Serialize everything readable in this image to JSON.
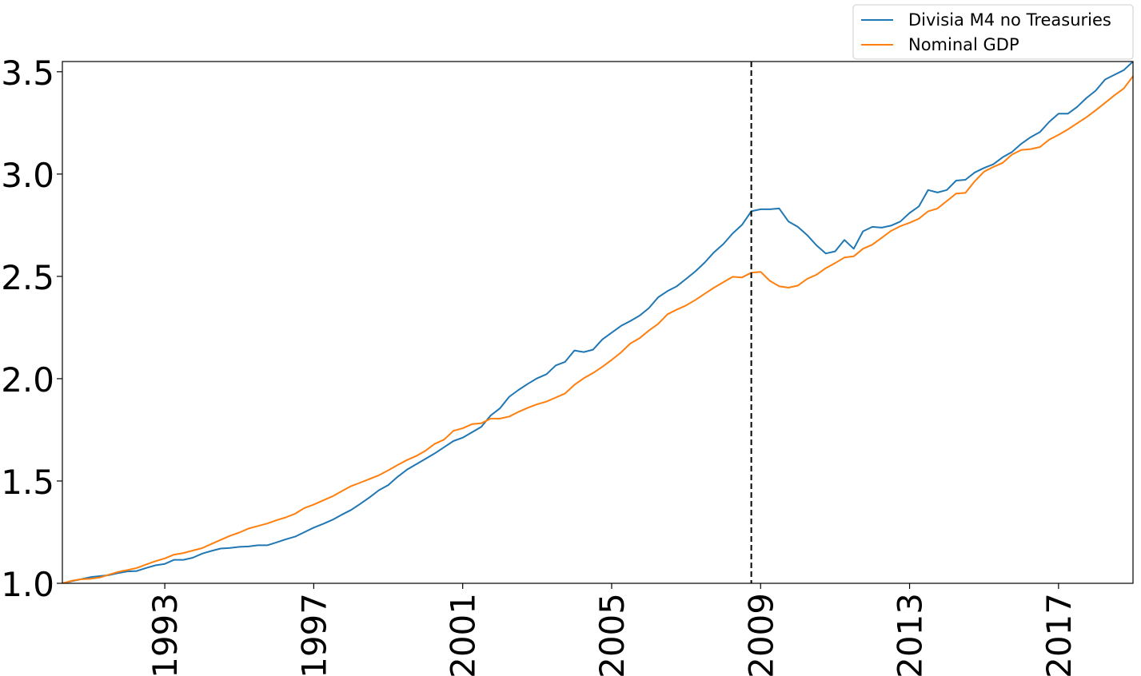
{
  "chart_data": {
    "type": "line",
    "title": "",
    "xlabel": "",
    "ylabel": "",
    "xlim": [
      1990.25,
      2019.0
    ],
    "ylim": [
      1.0,
      3.55
    ],
    "x_ticks": [
      "1993",
      "1997",
      "2001",
      "2005",
      "2009",
      "2013",
      "2017"
    ],
    "y_ticks": [
      "1.0",
      "1.5",
      "2.0",
      "2.5",
      "3.0",
      "3.5"
    ],
    "vertical_marker": 2008.75,
    "legend_position": "upper-right, above plot",
    "grid": false,
    "series": [
      {
        "name": "Divisia M4 no Treasuries",
        "color": "#1f77b4",
        "points": [
          [
            1990.25,
            1.0
          ],
          [
            1990.5,
            1.01
          ],
          [
            1990.75,
            1.02
          ],
          [
            1991.0,
            1.03
          ],
          [
            1991.25,
            1.035
          ],
          [
            1991.5,
            1.04
          ],
          [
            1991.75,
            1.05
          ],
          [
            1992.0,
            1.058
          ],
          [
            1992.25,
            1.06
          ],
          [
            1992.5,
            1.075
          ],
          [
            1992.75,
            1.088
          ],
          [
            1993.0,
            1.095
          ],
          [
            1993.25,
            1.115
          ],
          [
            1993.5,
            1.115
          ],
          [
            1993.75,
            1.125
          ],
          [
            1994.0,
            1.145
          ],
          [
            1994.25,
            1.158
          ],
          [
            1994.5,
            1.17
          ],
          [
            1994.75,
            1.173
          ],
          [
            1995.0,
            1.178
          ],
          [
            1995.25,
            1.18
          ],
          [
            1995.5,
            1.186
          ],
          [
            1995.75,
            1.186
          ],
          [
            1996.0,
            1.2
          ],
          [
            1996.25,
            1.215
          ],
          [
            1996.5,
            1.228
          ],
          [
            1996.75,
            1.25
          ],
          [
            1997.0,
            1.272
          ],
          [
            1997.25,
            1.29
          ],
          [
            1997.5,
            1.31
          ],
          [
            1997.75,
            1.335
          ],
          [
            1998.0,
            1.358
          ],
          [
            1998.25,
            1.388
          ],
          [
            1998.5,
            1.42
          ],
          [
            1998.75,
            1.455
          ],
          [
            1999.0,
            1.48
          ],
          [
            1999.25,
            1.52
          ],
          [
            1999.5,
            1.555
          ],
          [
            1999.75,
            1.582
          ],
          [
            2000.0,
            1.608
          ],
          [
            2000.25,
            1.635
          ],
          [
            2000.5,
            1.665
          ],
          [
            2000.75,
            1.695
          ],
          [
            2001.0,
            1.712
          ],
          [
            2001.25,
            1.738
          ],
          [
            2001.5,
            1.765
          ],
          [
            2001.75,
            1.82
          ],
          [
            2002.0,
            1.855
          ],
          [
            2002.25,
            1.912
          ],
          [
            2002.5,
            1.945
          ],
          [
            2002.75,
            1.975
          ],
          [
            2003.0,
            2.002
          ],
          [
            2003.25,
            2.022
          ],
          [
            2003.5,
            2.065
          ],
          [
            2003.75,
            2.082
          ],
          [
            2004.0,
            2.138
          ],
          [
            2004.25,
            2.13
          ],
          [
            2004.5,
            2.142
          ],
          [
            2004.75,
            2.192
          ],
          [
            2005.0,
            2.225
          ],
          [
            2005.25,
            2.258
          ],
          [
            2005.5,
            2.282
          ],
          [
            2005.75,
            2.308
          ],
          [
            2006.0,
            2.345
          ],
          [
            2006.25,
            2.398
          ],
          [
            2006.5,
            2.428
          ],
          [
            2006.75,
            2.452
          ],
          [
            2007.0,
            2.488
          ],
          [
            2007.25,
            2.525
          ],
          [
            2007.5,
            2.568
          ],
          [
            2007.75,
            2.618
          ],
          [
            2008.0,
            2.658
          ],
          [
            2008.25,
            2.71
          ],
          [
            2008.5,
            2.752
          ],
          [
            2008.75,
            2.818
          ],
          [
            2009.0,
            2.828
          ],
          [
            2009.25,
            2.828
          ],
          [
            2009.5,
            2.832
          ],
          [
            2009.75,
            2.768
          ],
          [
            2010.0,
            2.742
          ],
          [
            2010.25,
            2.702
          ],
          [
            2010.5,
            2.652
          ],
          [
            2010.75,
            2.612
          ],
          [
            2011.0,
            2.622
          ],
          [
            2011.25,
            2.678
          ],
          [
            2011.5,
            2.635
          ],
          [
            2011.75,
            2.72
          ],
          [
            2012.0,
            2.742
          ],
          [
            2012.25,
            2.738
          ],
          [
            2012.5,
            2.748
          ],
          [
            2012.75,
            2.768
          ],
          [
            2013.0,
            2.81
          ],
          [
            2013.25,
            2.842
          ],
          [
            2013.5,
            2.922
          ],
          [
            2013.75,
            2.91
          ],
          [
            2014.0,
            2.922
          ],
          [
            2014.25,
            2.968
          ],
          [
            2014.5,
            2.972
          ],
          [
            2014.75,
            3.008
          ],
          [
            2015.0,
            3.03
          ],
          [
            2015.25,
            3.048
          ],
          [
            2015.5,
            3.082
          ],
          [
            2015.75,
            3.108
          ],
          [
            2016.0,
            3.148
          ],
          [
            2016.25,
            3.18
          ],
          [
            2016.5,
            3.205
          ],
          [
            2016.75,
            3.255
          ],
          [
            2017.0,
            3.295
          ],
          [
            2017.25,
            3.295
          ],
          [
            2017.5,
            3.328
          ],
          [
            2017.75,
            3.372
          ],
          [
            2018.0,
            3.408
          ],
          [
            2018.25,
            3.462
          ],
          [
            2018.5,
            3.485
          ],
          [
            2018.75,
            3.508
          ],
          [
            2019.0,
            3.55
          ]
        ]
      },
      {
        "name": "Nominal GDP",
        "color": "#ff7f0e",
        "points": [
          [
            1990.25,
            1.0
          ],
          [
            1990.5,
            1.012
          ],
          [
            1990.75,
            1.02
          ],
          [
            1991.0,
            1.022
          ],
          [
            1991.25,
            1.028
          ],
          [
            1991.5,
            1.042
          ],
          [
            1991.75,
            1.056
          ],
          [
            1992.0,
            1.065
          ],
          [
            1992.25,
            1.075
          ],
          [
            1992.5,
            1.092
          ],
          [
            1992.75,
            1.108
          ],
          [
            1993.0,
            1.122
          ],
          [
            1993.25,
            1.14
          ],
          [
            1993.5,
            1.148
          ],
          [
            1993.75,
            1.16
          ],
          [
            1994.0,
            1.172
          ],
          [
            1994.25,
            1.192
          ],
          [
            1994.5,
            1.212
          ],
          [
            1994.75,
            1.232
          ],
          [
            1995.0,
            1.248
          ],
          [
            1995.25,
            1.268
          ],
          [
            1995.5,
            1.28
          ],
          [
            1995.75,
            1.292
          ],
          [
            1996.0,
            1.308
          ],
          [
            1996.25,
            1.322
          ],
          [
            1996.5,
            1.34
          ],
          [
            1996.75,
            1.368
          ],
          [
            1997.0,
            1.385
          ],
          [
            1997.25,
            1.405
          ],
          [
            1997.5,
            1.425
          ],
          [
            1997.75,
            1.45
          ],
          [
            1998.0,
            1.475
          ],
          [
            1998.25,
            1.492
          ],
          [
            1998.5,
            1.51
          ],
          [
            1998.75,
            1.528
          ],
          [
            1999.0,
            1.552
          ],
          [
            1999.25,
            1.578
          ],
          [
            1999.5,
            1.602
          ],
          [
            1999.75,
            1.622
          ],
          [
            2000.0,
            1.648
          ],
          [
            2000.25,
            1.682
          ],
          [
            2000.5,
            1.702
          ],
          [
            2000.75,
            1.745
          ],
          [
            2001.0,
            1.758
          ],
          [
            2001.25,
            1.778
          ],
          [
            2001.5,
            1.782
          ],
          [
            2001.75,
            1.805
          ],
          [
            2002.0,
            1.805
          ],
          [
            2002.25,
            1.815
          ],
          [
            2002.5,
            1.838
          ],
          [
            2002.75,
            1.858
          ],
          [
            2003.0,
            1.875
          ],
          [
            2003.25,
            1.888
          ],
          [
            2003.5,
            1.908
          ],
          [
            2003.75,
            1.928
          ],
          [
            2004.0,
            1.97
          ],
          [
            2004.25,
            2.002
          ],
          [
            2004.5,
            2.028
          ],
          [
            2004.75,
            2.058
          ],
          [
            2005.0,
            2.092
          ],
          [
            2005.25,
            2.128
          ],
          [
            2005.5,
            2.172
          ],
          [
            2005.75,
            2.198
          ],
          [
            2006.0,
            2.235
          ],
          [
            2006.25,
            2.268
          ],
          [
            2006.5,
            2.315
          ],
          [
            2006.75,
            2.338
          ],
          [
            2007.0,
            2.358
          ],
          [
            2007.25,
            2.385
          ],
          [
            2007.5,
            2.415
          ],
          [
            2007.75,
            2.445
          ],
          [
            2008.0,
            2.472
          ],
          [
            2008.25,
            2.498
          ],
          [
            2008.5,
            2.495
          ],
          [
            2008.75,
            2.518
          ],
          [
            2009.0,
            2.522
          ],
          [
            2009.25,
            2.478
          ],
          [
            2009.5,
            2.452
          ],
          [
            2009.75,
            2.445
          ],
          [
            2010.0,
            2.455
          ],
          [
            2010.25,
            2.488
          ],
          [
            2010.5,
            2.508
          ],
          [
            2010.75,
            2.54
          ],
          [
            2011.0,
            2.565
          ],
          [
            2011.25,
            2.592
          ],
          [
            2011.5,
            2.598
          ],
          [
            2011.75,
            2.635
          ],
          [
            2012.0,
            2.655
          ],
          [
            2012.25,
            2.688
          ],
          [
            2012.5,
            2.722
          ],
          [
            2012.75,
            2.745
          ],
          [
            2013.0,
            2.762
          ],
          [
            2013.25,
            2.782
          ],
          [
            2013.5,
            2.818
          ],
          [
            2013.75,
            2.832
          ],
          [
            2014.0,
            2.868
          ],
          [
            2014.25,
            2.905
          ],
          [
            2014.5,
            2.908
          ],
          [
            2014.75,
            2.965
          ],
          [
            2015.0,
            3.012
          ],
          [
            2015.25,
            3.035
          ],
          [
            2015.5,
            3.055
          ],
          [
            2015.75,
            3.095
          ],
          [
            2016.0,
            3.118
          ],
          [
            2016.25,
            3.122
          ],
          [
            2016.5,
            3.132
          ],
          [
            2016.75,
            3.168
          ],
          [
            2017.0,
            3.192
          ],
          [
            2017.25,
            3.218
          ],
          [
            2017.5,
            3.248
          ],
          [
            2017.75,
            3.278
          ],
          [
            2018.0,
            3.312
          ],
          [
            2018.25,
            3.348
          ],
          [
            2018.5,
            3.385
          ],
          [
            2018.75,
            3.418
          ],
          [
            2019.0,
            3.478
          ],
          [
            2019.25,
            3.51
          ]
        ]
      }
    ]
  }
}
